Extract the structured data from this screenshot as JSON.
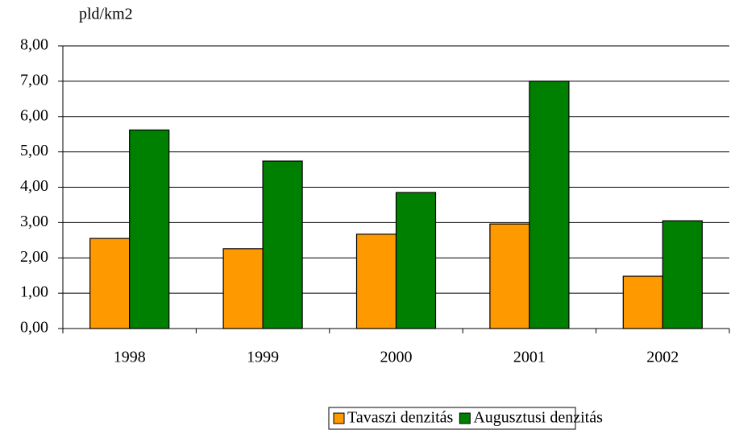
{
  "chart_data": {
    "type": "bar",
    "y_label": "pld/km2",
    "categories": [
      "1998",
      "1999",
      "2000",
      "2001",
      "2002"
    ],
    "series": [
      {
        "name": "Tavaszi denzitás",
        "color": "#ff9900",
        "values": [
          2.55,
          2.26,
          2.67,
          2.96,
          1.48
        ]
      },
      {
        "name": "Augusztusi denzitás",
        "color": "#008000",
        "values": [
          5.62,
          4.74,
          3.85,
          7.0,
          3.05
        ]
      }
    ],
    "ylim": [
      0,
      8
    ],
    "yticks": [
      {
        "value": 0,
        "label": "0,00"
      },
      {
        "value": 1,
        "label": "1,00"
      },
      {
        "value": 2,
        "label": "2,00"
      },
      {
        "value": 3,
        "label": "3,00"
      },
      {
        "value": 4,
        "label": "4,00"
      },
      {
        "value": 5,
        "label": "5,00"
      },
      {
        "value": 6,
        "label": "6,00"
      },
      {
        "value": 7,
        "label": "7,00"
      },
      {
        "value": 8,
        "label": "8,00"
      }
    ],
    "grid": true,
    "legend": "bottom"
  }
}
